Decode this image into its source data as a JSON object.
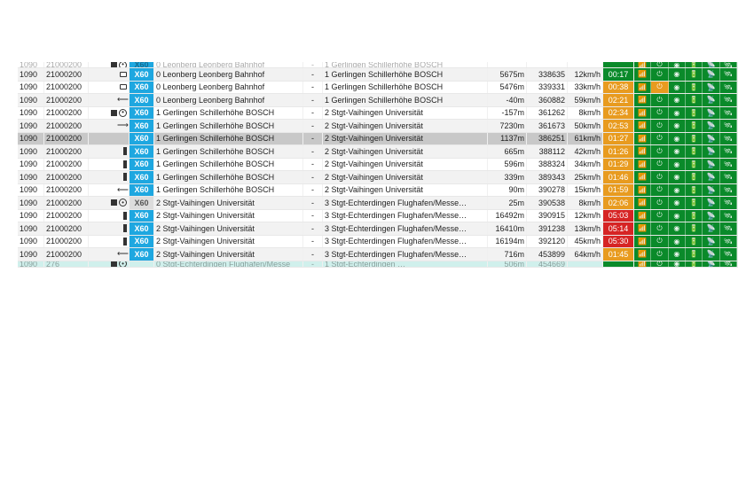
{
  "colors": {
    "line_blue": "#1ea7e0",
    "line_grey": "#dcdcdc",
    "time_green": "#0a8a2a",
    "time_orange": "#e89b1f",
    "time_red": "#d62424",
    "status_green": "#0a8a2a",
    "status_yellow": "#e8c21f",
    "status_orange": "#e89b1f",
    "row_alt": "#f2f2f2",
    "row_selected": "#c8c8c8",
    "footer_row": "#d0f0ec"
  },
  "status_icons": [
    "signal",
    "power",
    "stop",
    "battery",
    "wifi",
    "gps"
  ],
  "rows": [
    {
      "cutoff": "top",
      "alt": false,
      "id1": "1090",
      "id2": "21000200",
      "icons": [
        "square",
        "circle"
      ],
      "line": "X60",
      "lineColor": "blue",
      "origin": "0 Leonberg Leonberg Bahnhof",
      "dash": "-",
      "dest": "1 Gerlingen Schillerhöhe BOSCH",
      "dist": "",
      "num": "",
      "spd": "",
      "time": "",
      "timeColor": "green",
      "status": [
        "green",
        "green",
        "green",
        "green",
        "green",
        "green"
      ]
    },
    {
      "alt": true,
      "id1": "1090",
      "id2": "21000200",
      "icons": [
        "dev"
      ],
      "line": "X60",
      "lineColor": "blue",
      "origin": "0 Leonberg Leonberg Bahnhof",
      "dash": "-",
      "dest": "1 Gerlingen Schillerhöhe BOSCH",
      "dist": "5675m",
      "num": "338635",
      "spd": "12km/h",
      "time": "00:17",
      "timeColor": "green",
      "status": [
        "green",
        "green",
        "green",
        "green",
        "green",
        "green"
      ]
    },
    {
      "alt": false,
      "id1": "1090",
      "id2": "21000200",
      "icons": [
        "dev"
      ],
      "line": "X60",
      "lineColor": "blue",
      "origin": "0 Leonberg Leonberg Bahnhof",
      "dash": "-",
      "dest": "1 Gerlingen Schillerhöhe BOSCH",
      "dist": "5476m",
      "num": "339331",
      "spd": "33km/h",
      "time": "00:38",
      "timeColor": "orange",
      "status": [
        "green",
        "orange",
        "green",
        "green",
        "green",
        "green"
      ]
    },
    {
      "alt": true,
      "id1": "1090",
      "id2": "21000200",
      "icons": [
        "in"
      ],
      "line": "X60",
      "lineColor": "blue",
      "origin": "0 Leonberg Leonberg Bahnhof",
      "dash": "-",
      "dest": "1 Gerlingen Schillerhöhe BOSCH",
      "dist": "-40m",
      "num": "360882",
      "spd": "59km/h",
      "time": "02:21",
      "timeColor": "orange",
      "status": [
        "green",
        "green",
        "green",
        "green",
        "green",
        "green"
      ]
    },
    {
      "alt": false,
      "id1": "1090",
      "id2": "21000200",
      "icons": [
        "square",
        "circle"
      ],
      "line": "X60",
      "lineColor": "blue",
      "origin": "1 Gerlingen Schillerhöhe BOSCH",
      "dash": "-",
      "dest": "2 Stgt-Vaihingen Universität",
      "dist": "-157m",
      "num": "361262",
      "spd": "8km/h",
      "time": "02:34",
      "timeColor": "orange",
      "status": [
        "green",
        "green",
        "green",
        "green",
        "green",
        "green"
      ]
    },
    {
      "alt": true,
      "id1": "1090",
      "id2": "21000200",
      "icons": [
        "out"
      ],
      "line": "X60",
      "lineColor": "blue",
      "origin": "1 Gerlingen Schillerhöhe BOSCH",
      "dash": "-",
      "dest": "2 Stgt-Vaihingen Universität",
      "dist": "7230m",
      "num": "361673",
      "spd": "50km/h",
      "time": "02:53",
      "timeColor": "orange",
      "status": [
        "green",
        "green",
        "green",
        "green",
        "green",
        "green"
      ]
    },
    {
      "alt": false,
      "selected": true,
      "id1": "1090",
      "id2": "21000200",
      "icons": [],
      "line": "X60",
      "lineColor": "blue",
      "origin": "1 Gerlingen Schillerhöhe BOSCH",
      "dash": "-",
      "dest": "2 Stgt-Vaihingen Universität",
      "dist": "1137m",
      "num": "386251",
      "spd": "61km/h",
      "time": "01:27",
      "timeColor": "orange",
      "status": [
        "green",
        "green",
        "green",
        "green",
        "green",
        "green"
      ]
    },
    {
      "alt": true,
      "id1": "1090",
      "id2": "21000200",
      "icons": [
        "vbar"
      ],
      "line": "X60",
      "lineColor": "blue",
      "origin": "1 Gerlingen Schillerhöhe BOSCH",
      "dash": "-",
      "dest": "2 Stgt-Vaihingen Universität",
      "dist": "665m",
      "num": "388112",
      "spd": "42km/h",
      "time": "01:26",
      "timeColor": "orange",
      "status": [
        "green",
        "green",
        "green",
        "green",
        "green",
        "green"
      ]
    },
    {
      "alt": false,
      "id1": "1090",
      "id2": "21000200",
      "icons": [
        "vbar"
      ],
      "line": "X60",
      "lineColor": "blue",
      "origin": "1 Gerlingen Schillerhöhe BOSCH",
      "dash": "-",
      "dest": "2 Stgt-Vaihingen Universität",
      "dist": "596m",
      "num": "388324",
      "spd": "34km/h",
      "time": "01:29",
      "timeColor": "orange",
      "status": [
        "green",
        "green",
        "green",
        "green",
        "green",
        "green"
      ]
    },
    {
      "alt": true,
      "id1": "1090",
      "id2": "21000200",
      "icons": [
        "vbar"
      ],
      "line": "X60",
      "lineColor": "blue",
      "origin": "1 Gerlingen Schillerhöhe BOSCH",
      "dash": "-",
      "dest": "2 Stgt-Vaihingen Universität",
      "dist": "339m",
      "num": "389343",
      "spd": "25km/h",
      "time": "01:46",
      "timeColor": "orange",
      "status": [
        "green",
        "green",
        "green",
        "green",
        "green",
        "green"
      ]
    },
    {
      "alt": false,
      "id1": "1090",
      "id2": "21000200",
      "icons": [
        "in"
      ],
      "line": "X60",
      "lineColor": "blue",
      "origin": "1 Gerlingen Schillerhöhe BOSCH",
      "dash": "-",
      "dest": "2 Stgt-Vaihingen Universität",
      "dist": "90m",
      "num": "390278",
      "spd": "15km/h",
      "time": "01:59",
      "timeColor": "orange",
      "status": [
        "green",
        "green",
        "green",
        "green",
        "green",
        "green"
      ]
    },
    {
      "alt": true,
      "id1": "1090",
      "id2": "21000200",
      "icons": [
        "square",
        "circle"
      ],
      "line": "X60",
      "lineColor": "grey",
      "origin": "2 Stgt-Vaihingen Universität",
      "dash": "-",
      "dest": "3 Stgt-Echterdingen Flughafen/Messe…",
      "dist": "25m",
      "num": "390538",
      "spd": "8km/h",
      "time": "02:06",
      "timeColor": "orange",
      "status": [
        "green",
        "green",
        "green",
        "green",
        "green",
        "green"
      ]
    },
    {
      "alt": false,
      "id1": "1090",
      "id2": "21000200",
      "icons": [
        "vbar"
      ],
      "line": "X60",
      "lineColor": "blue",
      "origin": "2 Stgt-Vaihingen Universität",
      "dash": "-",
      "dest": "3 Stgt-Echterdingen Flughafen/Messe…",
      "dist": "16492m",
      "num": "390915",
      "spd": "12km/h",
      "time": "05:03",
      "timeColor": "red",
      "status": [
        "green",
        "green",
        "green",
        "green",
        "green",
        "green"
      ]
    },
    {
      "alt": true,
      "id1": "1090",
      "id2": "21000200",
      "icons": [
        "vbar"
      ],
      "line": "X60",
      "lineColor": "blue",
      "origin": "2 Stgt-Vaihingen Universität",
      "dash": "-",
      "dest": "3 Stgt-Echterdingen Flughafen/Messe…",
      "dist": "16410m",
      "num": "391238",
      "spd": "13km/h",
      "time": "05:14",
      "timeColor": "red",
      "status": [
        "green",
        "green",
        "green",
        "green",
        "green",
        "green"
      ]
    },
    {
      "alt": false,
      "id1": "1090",
      "id2": "21000200",
      "icons": [
        "vbar"
      ],
      "line": "X60",
      "lineColor": "blue",
      "origin": "2 Stgt-Vaihingen Universität",
      "dash": "-",
      "dest": "3 Stgt-Echterdingen Flughafen/Messe…",
      "dist": "16194m",
      "num": "392120",
      "spd": "45km/h",
      "time": "05:30",
      "timeColor": "red",
      "status": [
        "green",
        "green",
        "green",
        "green",
        "green",
        "green"
      ]
    },
    {
      "alt": true,
      "id1": "1090",
      "id2": "21000200",
      "icons": [
        "in"
      ],
      "line": "X60",
      "lineColor": "blue",
      "origin": "2 Stgt-Vaihingen Universität",
      "dash": "-",
      "dest": "3 Stgt-Echterdingen Flughafen/Messe…",
      "dist": "716m",
      "num": "453899",
      "spd": "64km/h",
      "time": "01:45",
      "timeColor": "orange",
      "status": [
        "green",
        "green",
        "green",
        "green",
        "green",
        "green"
      ]
    },
    {
      "cutoff": "bot",
      "footer": true,
      "id1": "1090",
      "id2": "276",
      "icons": [
        "square",
        "circle"
      ],
      "line": "",
      "lineColor": "",
      "origin": "0 Stgt-Echterdingen Flughafen/Messe",
      "dash": "-",
      "dest": "1 Stgt-Echterdingen …",
      "dist": "506m",
      "num": "454669",
      "spd": "",
      "time": "",
      "timeColor": "green",
      "status": [
        "green",
        "green",
        "green",
        "green",
        "green",
        "green"
      ]
    }
  ]
}
